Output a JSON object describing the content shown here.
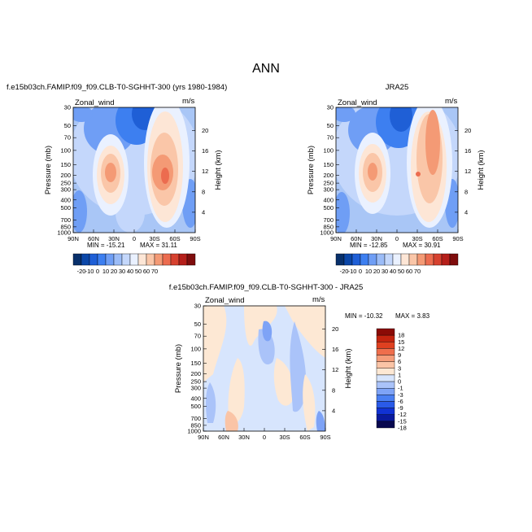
{
  "title": "ANN",
  "colors": {
    "sym_scale": [
      "#08306b",
      "#0b47a8",
      "#1f5fd6",
      "#3d7ff0",
      "#6f9ef5",
      "#9bbcf7",
      "#c4d7fb",
      "#eaf1ff",
      "#fde6d6",
      "#fac6a8",
      "#f49a75",
      "#ec6c4f",
      "#d6412f",
      "#b51f1a",
      "#7f0d0d"
    ],
    "diff_scale": [
      "#08084f",
      "#0a1a9e",
      "#1132d4",
      "#2a5ae8",
      "#4a7ff2",
      "#7ea3f6",
      "#aac3f9",
      "#d7e5fd",
      "#fde8d4",
      "#fac4a6",
      "#f59d7a",
      "#ef6e4c",
      "#df4020",
      "#c4240f",
      "#8b0b06"
    ]
  },
  "chart_data": [
    {
      "type": "heatmap",
      "title": "f.e15b03ch.FAMIP.f09_f09.CLB-T0-SGHHT-300 (yrs 1980-1984)",
      "variable_label": "Zonal_wind",
      "units_label": "m/s",
      "ylabel": "Pressure (mb)",
      "right_ylabel": "Height (km)",
      "x_ticks": [
        "90N",
        "60N",
        "30N",
        "0",
        "30S",
        "60S",
        "90S"
      ],
      "y_ticks": [
        "30",
        "50",
        "70",
        "100",
        "150",
        "200",
        "250",
        "300",
        "400",
        "500",
        "700",
        "850",
        "1000"
      ],
      "right_ticks": [
        "20",
        "16",
        "12",
        "8",
        "4"
      ],
      "min_label": "MIN = -15.21",
      "max_label": "MAX = 31.11",
      "colorbar_labels": [
        "-20",
        "-10",
        "0",
        "10",
        "20",
        "30",
        "40",
        "50",
        "60",
        "70"
      ],
      "features": [
        {
          "lat": 30,
          "pressure": 200,
          "value": 28
        },
        {
          "lat": -35,
          "pressure": 200,
          "value": 31.11
        },
        {
          "lat": 5,
          "pressure": 50,
          "value": -15.21
        }
      ]
    },
    {
      "type": "heatmap",
      "title": "JRA25",
      "variable_label": "Zonal_wind",
      "units_label": "m/s",
      "ylabel": "Pressure (mb)",
      "right_ylabel": "Height (km)",
      "x_ticks": [
        "90N",
        "60N",
        "30N",
        "0",
        "30S",
        "60S",
        "90S"
      ],
      "y_ticks": [
        "30",
        "50",
        "70",
        "100",
        "150",
        "200",
        "250",
        "300",
        "400",
        "500",
        "700",
        "850",
        "1000"
      ],
      "right_ticks": [
        "20",
        "16",
        "12",
        "8",
        "4"
      ],
      "min_label": "MIN = -12.85",
      "max_label": "MAX = 30.91",
      "colorbar_labels": [
        "-20",
        "-10",
        "0",
        "10",
        "20",
        "30",
        "40",
        "50",
        "60",
        "70"
      ],
      "features": [
        {
          "lat": 30,
          "pressure": 200,
          "value": 27
        },
        {
          "lat": -33,
          "pressure": 200,
          "value": 30.91
        },
        {
          "lat": 5,
          "pressure": 50,
          "value": -12.85
        }
      ]
    },
    {
      "type": "heatmap",
      "title": "f.e15b03ch.FAMIP.f09_f09.CLB-T0-SGHHT-300 - JRA25",
      "variable_label": "Zonal_wind",
      "units_label": "m/s",
      "ylabel": "Pressure (mb)",
      "right_ylabel": "Height (km)",
      "x_ticks": [
        "90N",
        "60N",
        "30N",
        "0",
        "30S",
        "60S",
        "90S"
      ],
      "y_ticks": [
        "30",
        "50",
        "70",
        "100",
        "150",
        "200",
        "250",
        "300",
        "400",
        "500",
        "700",
        "850",
        "1000"
      ],
      "right_ticks": [
        "20",
        "16",
        "12",
        "8",
        "4"
      ],
      "min_label": "MIN = -10.32",
      "max_label": "MAX =   3.83",
      "colorbar_labels": [
        "18",
        "15",
        "12",
        "9",
        "6",
        "3",
        "1",
        "0",
        "-1",
        "-3",
        "-6",
        "-9",
        "-12",
        "-15",
        "-18"
      ]
    }
  ]
}
